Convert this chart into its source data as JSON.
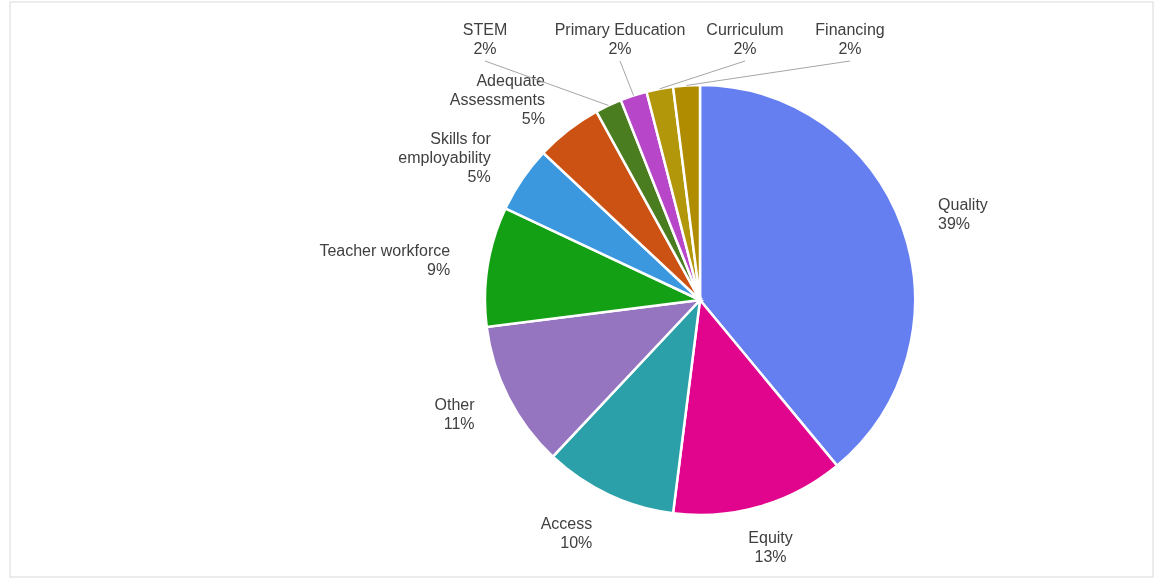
{
  "chart_data": {
    "type": "pie",
    "categories": [
      "Quality",
      "Equity",
      "Access",
      "Other",
      "Teacher workforce",
      "Skills for employability",
      "Adequate Assessments",
      "STEM",
      "Primary Education",
      "Curriculum",
      "Financing"
    ],
    "values": [
      39,
      13,
      10,
      11,
      9,
      5,
      5,
      2,
      2,
      2,
      2
    ],
    "colors": [
      "#657ef0",
      "#e0058c",
      "#2ca0a8",
      "#9575c0",
      "#14a014",
      "#3b98de",
      "#cb5212",
      "#4a7c20",
      "#b746c8",
      "#b3970b",
      "#b08c00"
    ],
    "value_labels": [
      "39%",
      "13%",
      "10%",
      "11%",
      "9%",
      "5%",
      "5%",
      "2%",
      "2%",
      "2%",
      "2%"
    ]
  }
}
